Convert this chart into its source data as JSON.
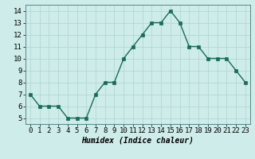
{
  "x": [
    0,
    1,
    2,
    3,
    4,
    5,
    6,
    7,
    8,
    9,
    10,
    11,
    12,
    13,
    14,
    15,
    16,
    17,
    18,
    19,
    20,
    21,
    22,
    23
  ],
  "y": [
    7,
    6,
    6,
    6,
    5,
    5,
    5,
    7,
    8,
    8,
    10,
    11,
    12,
    13,
    13,
    14,
    13,
    11,
    11,
    10,
    10,
    10,
    9,
    8
  ],
  "line_color": "#1a6b5a",
  "marker_color": "#1a6b5a",
  "bg_color": "#ceecea",
  "grid_color": "#aed4d0",
  "xlabel": "Humidex (Indice chaleur)",
  "ylim": [
    4.5,
    14.5
  ],
  "xlim": [
    -0.5,
    23.5
  ],
  "yticks": [
    5,
    6,
    7,
    8,
    9,
    10,
    11,
    12,
    13,
    14
  ],
  "xticks": [
    0,
    1,
    2,
    3,
    4,
    5,
    6,
    7,
    8,
    9,
    10,
    11,
    12,
    13,
    14,
    15,
    16,
    17,
    18,
    19,
    20,
    21,
    22,
    23
  ],
  "xlabel_fontsize": 7,
  "tick_fontsize": 6.5,
  "xlabel_fontweight": "bold"
}
